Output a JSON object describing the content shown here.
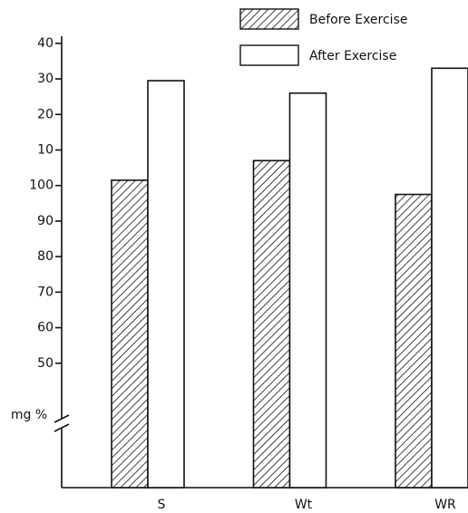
{
  "chart_data": {
    "type": "bar",
    "y_label": "mg %",
    "categories": [
      "S",
      "Wt",
      "WR"
    ],
    "series": [
      {
        "name": "Before Exercise",
        "color": "#111111",
        "pattern": "hatch",
        "values": [
          101.5,
          107,
          97.5
        ]
      },
      {
        "name": "After Exercise",
        "color": "#ffffff",
        "values": [
          129.5,
          126,
          133
        ]
      }
    ],
    "ylim": [
      15,
      142
    ],
    "yticks": [
      50,
      60,
      70,
      80,
      90,
      100,
      {
        "value": 110,
        "label": "10"
      },
      {
        "value": 120,
        "label": "20"
      },
      {
        "value": 130,
        "label": "30"
      },
      {
        "value": 140,
        "label": "40"
      }
    ],
    "legend": "top-right"
  }
}
